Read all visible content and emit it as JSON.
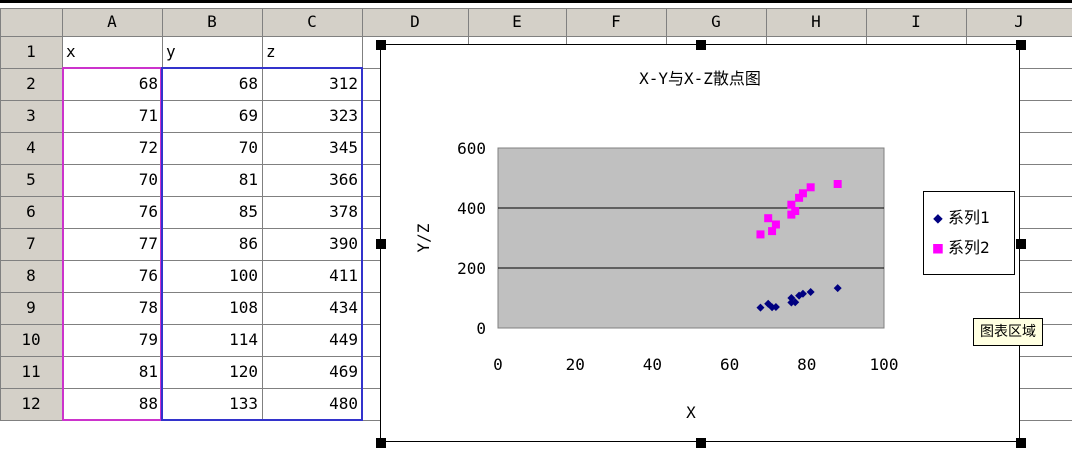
{
  "spreadsheet": {
    "columns": [
      "A",
      "B",
      "C",
      "D",
      "E",
      "F",
      "G",
      "H",
      "I",
      "J"
    ],
    "rows": [
      "1",
      "2",
      "3",
      "4",
      "5",
      "6",
      "7",
      "8",
      "9",
      "10",
      "11",
      "12"
    ],
    "header_row": [
      "x",
      "y",
      "z"
    ],
    "data": [
      [
        68,
        68,
        312
      ],
      [
        71,
        69,
        323
      ],
      [
        72,
        70,
        345
      ],
      [
        70,
        81,
        366
      ],
      [
        76,
        85,
        378
      ],
      [
        77,
        86,
        390
      ],
      [
        76,
        100,
        411
      ],
      [
        78,
        108,
        434
      ],
      [
        79,
        114,
        449
      ],
      [
        81,
        120,
        469
      ],
      [
        88,
        133,
        480
      ]
    ]
  },
  "tooltip": "图表区域",
  "colors": {
    "series1": "#000080",
    "series2": "#ff00ff",
    "plot_bg": "#c0c0c0",
    "header_bg": "#d4d0c8"
  },
  "chart_data": {
    "type": "scatter",
    "title": "X-Y与X-Z散点图",
    "xlabel": "X",
    "ylabel": "Y/Z",
    "xlim": [
      0,
      100
    ],
    "ylim": [
      0,
      600
    ],
    "xticks": [
      "0",
      "20",
      "40",
      "60",
      "80",
      "100"
    ],
    "yticks": [
      "0",
      "200",
      "400",
      "600"
    ],
    "grid": true,
    "legend_position": "right",
    "series": [
      {
        "name": "系列1",
        "marker": "diamond",
        "x": [
          68,
          71,
          72,
          70,
          76,
          77,
          76,
          78,
          79,
          81,
          88
        ],
        "y": [
          68,
          69,
          70,
          81,
          85,
          86,
          100,
          108,
          114,
          120,
          133
        ]
      },
      {
        "name": "系列2",
        "marker": "square",
        "x": [
          68,
          71,
          72,
          70,
          76,
          77,
          76,
          78,
          79,
          81,
          88
        ],
        "y": [
          312,
          323,
          345,
          366,
          378,
          390,
          411,
          434,
          449,
          469,
          480
        ]
      }
    ]
  }
}
